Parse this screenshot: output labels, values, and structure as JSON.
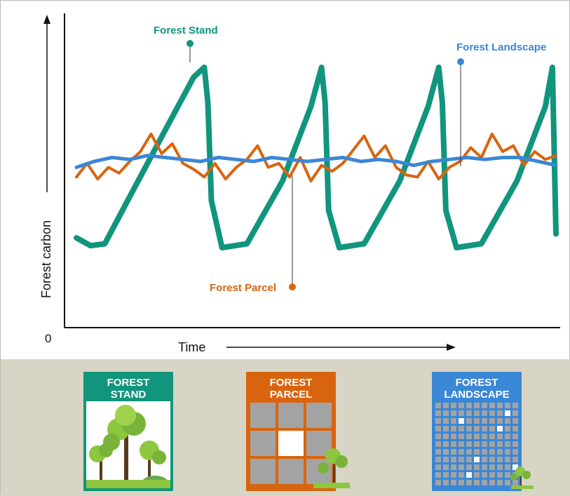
{
  "chart_data": {
    "type": "line",
    "ylabel": "Forest carbon",
    "xlabel": "Time",
    "y_origin_label": "0",
    "series": [
      {
        "name": "Forest Stand",
        "color": "#11957d",
        "x": [
          0,
          4,
          8,
          15,
          25,
          33,
          36,
          37,
          38,
          41,
          48,
          58,
          66,
          69,
          70,
          71,
          74,
          81,
          91,
          99,
          102,
          103,
          104,
          107,
          114,
          124,
          132,
          134,
          135
        ],
        "y": [
          2.1,
          1.7,
          1.8,
          4.2,
          7.6,
          10.3,
          10.8,
          9.0,
          4.0,
          1.6,
          1.8,
          5.0,
          8.8,
          10.8,
          9.0,
          3.5,
          1.6,
          1.8,
          5.0,
          8.8,
          10.8,
          9.0,
          3.5,
          1.6,
          1.8,
          5.0,
          8.8,
          10.8,
          2.3
        ]
      },
      {
        "name": "Forest Parcel",
        "color": "#d9640f",
        "x": [
          0,
          3,
          6,
          9,
          12,
          15,
          18,
          21,
          24,
          27,
          30,
          33,
          36,
          39,
          42,
          45,
          48,
          51,
          54,
          57,
          60,
          63,
          66,
          69,
          72,
          75,
          78,
          81,
          84,
          87,
          90,
          93,
          96,
          99,
          102,
          105,
          108,
          111,
          114,
          117,
          120,
          123,
          126,
          129,
          132,
          135
        ],
        "y": [
          5.2,
          5.9,
          5.1,
          5.7,
          5.4,
          6.0,
          6.5,
          7.4,
          6.4,
          6.9,
          5.9,
          5.6,
          5.2,
          5.9,
          5.1,
          5.7,
          6.1,
          6.8,
          5.7,
          5.9,
          5.2,
          6.2,
          5.0,
          5.8,
          5.5,
          5.9,
          6.6,
          7.3,
          6.2,
          6.8,
          5.7,
          5.3,
          5.2,
          6.0,
          5.1,
          5.7,
          6.0,
          6.7,
          6.2,
          7.4,
          6.5,
          6.8,
          5.8,
          6.5,
          6.1,
          6.3
        ]
      },
      {
        "name": "Forest Landscape",
        "color": "#3a87d6",
        "x": [
          0,
          5,
          10,
          15,
          20,
          25,
          30,
          35,
          40,
          45,
          50,
          55,
          60,
          65,
          70,
          75,
          80,
          85,
          90,
          95,
          100,
          105,
          110,
          115,
          120,
          125,
          130,
          135
        ],
        "y": [
          5.7,
          6.0,
          6.2,
          6.1,
          6.3,
          6.2,
          6.1,
          6.0,
          6.2,
          6.1,
          6.0,
          6.2,
          6.1,
          6.0,
          6.1,
          6.2,
          6.0,
          6.1,
          6.0,
          5.8,
          6.0,
          6.1,
          6.2,
          6.1,
          6.2,
          6.2,
          6.0,
          5.8
        ]
      }
    ],
    "xlim": [
      0,
      135
    ],
    "ylim": [
      0,
      12
    ]
  },
  "scales": [
    {
      "label": "FOREST\nSTAND",
      "color": "#11957d"
    },
    {
      "label": "FOREST\nPARCEL",
      "color": "#d9640f"
    },
    {
      "label": "FOREST\nLANDSCAPE",
      "color": "#3a87d6"
    }
  ]
}
